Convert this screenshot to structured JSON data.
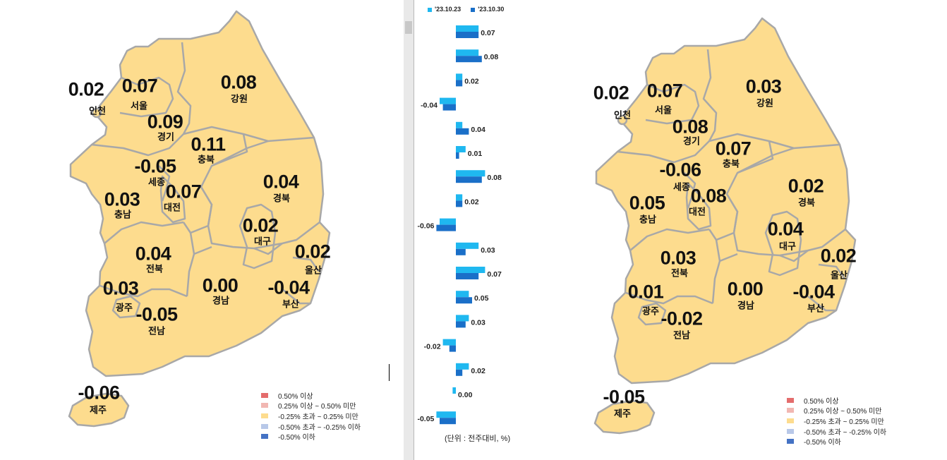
{
  "colors": {
    "land": "#FDDC8E",
    "border": "#A8A8A8",
    "bar_prev": "#1FB8F0",
    "bar_curr": "#1A6FC8"
  },
  "legend": [
    {
      "label": "0.50% 이상",
      "color": "#E46C6C"
    },
    {
      "label": "0.25% 이상 ~ 0.50% 미만",
      "color": "#F1B7B2"
    },
    {
      "label": "-0.25% 초과 ~ 0.25% 미만",
      "color": "#FDDC8E"
    },
    {
      "label": "-0.50% 초과 ~ -0.25% 이하",
      "color": "#B8C8E8"
    },
    {
      "label": "-0.50% 이하",
      "color": "#4472C4"
    }
  ],
  "left_map": {
    "regions": [
      {
        "name": "인천",
        "value": "0.02"
      },
      {
        "name": "서울",
        "value": "0.07"
      },
      {
        "name": "강원",
        "value": "0.08"
      },
      {
        "name": "경기",
        "value": "0.09"
      },
      {
        "name": "충북",
        "value": "0.11"
      },
      {
        "name": "세종",
        "value": "-0.05"
      },
      {
        "name": "충남",
        "value": "0.03"
      },
      {
        "name": "대전",
        "value": "0.07"
      },
      {
        "name": "경북",
        "value": "0.04"
      },
      {
        "name": "대구",
        "value": "0.02"
      },
      {
        "name": "울산",
        "value": "0.02"
      },
      {
        "name": "전북",
        "value": "0.04"
      },
      {
        "name": "경남",
        "value": "0.00"
      },
      {
        "name": "부산",
        "value": "-0.04"
      },
      {
        "name": "광주",
        "value": "0.03"
      },
      {
        "name": "전남",
        "value": "-0.05"
      },
      {
        "name": "제주",
        "value": "-0.06"
      }
    ]
  },
  "right_map": {
    "regions": [
      {
        "name": "인천",
        "value": "0.02"
      },
      {
        "name": "서울",
        "value": "0.07"
      },
      {
        "name": "강원",
        "value": "0.03"
      },
      {
        "name": "경기",
        "value": "0.08"
      },
      {
        "name": "충북",
        "value": "0.07"
      },
      {
        "name": "세종",
        "value": "-0.06"
      },
      {
        "name": "충남",
        "value": "0.05"
      },
      {
        "name": "대전",
        "value": "0.08"
      },
      {
        "name": "경북",
        "value": "0.02"
      },
      {
        "name": "대구",
        "value": "0.04"
      },
      {
        "name": "울산",
        "value": "0.02"
      },
      {
        "name": "전북",
        "value": "0.03"
      },
      {
        "name": "경남",
        "value": "0.00"
      },
      {
        "name": "부산",
        "value": "-0.04"
      },
      {
        "name": "광주",
        "value": "0.01"
      },
      {
        "name": "전남",
        "value": "-0.02"
      },
      {
        "name": "제주",
        "value": "-0.05"
      }
    ]
  },
  "chart_data": {
    "type": "bar",
    "orientation": "horizontal",
    "unit_label": "(단위 : 전주대비, %)",
    "series": [
      {
        "name": "'23.10.23",
        "values": [
          0.07,
          0.07,
          0.02,
          -0.05,
          0.02,
          0.03,
          0.09,
          0.02,
          -0.05,
          0.07,
          0.09,
          0.04,
          0.04,
          -0.04,
          0.04,
          -0.01,
          -0.06
        ]
      },
      {
        "name": "'23.10.30",
        "values": [
          0.07,
          0.08,
          0.02,
          -0.04,
          0.04,
          0.01,
          0.08,
          0.02,
          -0.06,
          0.03,
          0.07,
          0.05,
          0.03,
          -0.02,
          0.02,
          0.0,
          -0.05
        ]
      }
    ],
    "labels": [
      "0.07",
      "0.08",
      "0.02",
      "-0.04",
      "0.04",
      "0.01",
      "0.08",
      "0.02",
      "-0.06",
      "0.03",
      "0.07",
      "0.05",
      "0.03",
      "-0.02",
      "0.02",
      "0.00",
      "-0.05"
    ]
  }
}
